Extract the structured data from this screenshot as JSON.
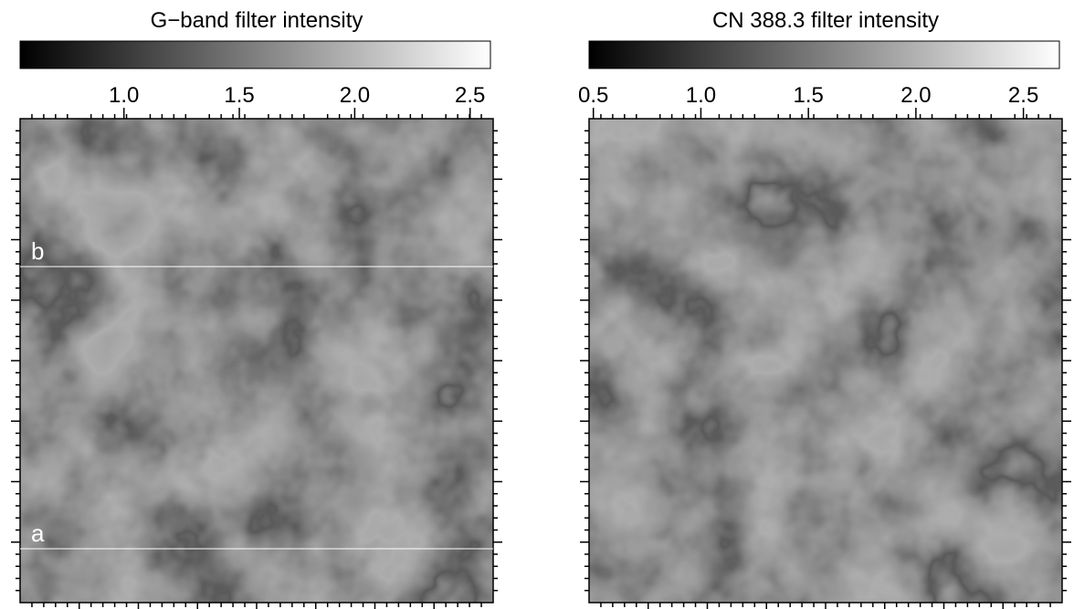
{
  "chart_data": [
    {
      "type": "image",
      "title": "G−band filter intensity",
      "colorbar": {
        "xlim": [
          0.55,
          2.6
        ],
        "xticks": [
          {
            "value": 1,
            "label": "1.0"
          },
          1.5,
          {
            "value": 2,
            "label": "2.0"
          },
          2.5
        ]
      },
      "annotations": [
        "b",
        "a"
      ]
    },
    {
      "type": "image",
      "title": "CN 388.3 filter intensity",
      "colorbar": {
        "xlim": [
          0.48,
          2.68
        ],
        "xticks": [
          0.5,
          {
            "value": 1,
            "label": "1.0"
          },
          1.5,
          {
            "value": 2,
            "label": "2.0"
          },
          2.5
        ]
      }
    }
  ]
}
